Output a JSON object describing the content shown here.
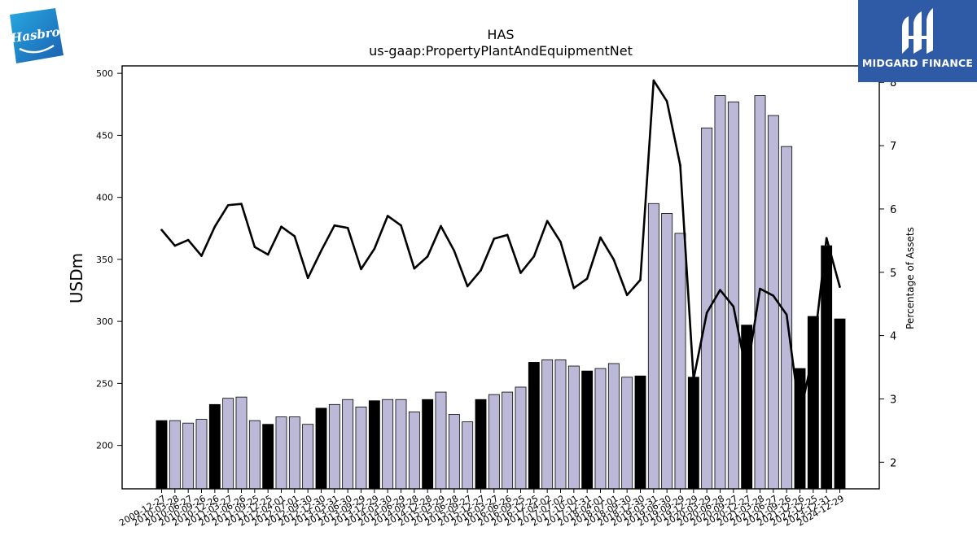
{
  "brand": {
    "left_logo": "Hasbro",
    "right_logo": "MIDGARD FINANCE"
  },
  "chart_data": {
    "type": "bar",
    "title": "HAS",
    "subtitle": "us-gaap:PropertyPlantAndEquipmentNet",
    "ylabel": "USDm",
    "y2label": "Percentage of Assets",
    "ylim": [
      165,
      506
    ],
    "y2lim": [
      1.58,
      8.26
    ],
    "yticks": [
      200,
      250,
      300,
      350,
      400,
      450,
      500
    ],
    "y2ticks": [
      2,
      3,
      4,
      5,
      6,
      7,
      8
    ],
    "categories": [
      "2009-12-27",
      "2010-03-28",
      "2010-06-27",
      "2010-09-26",
      "2010-12-26",
      "2011-03-27",
      "2011-06-26",
      "2011-09-25",
      "2011-12-25",
      "2012-04-01",
      "2012-07-01",
      "2012-09-30",
      "2012-12-30",
      "2013-03-31",
      "2013-06-30",
      "2013-09-29",
      "2013-12-29",
      "2014-03-30",
      "2014-06-29",
      "2014-09-28",
      "2014-12-28",
      "2015-03-29",
      "2015-06-28",
      "2015-09-27",
      "2015-12-27",
      "2016-03-27",
      "2016-06-26",
      "2016-09-25",
      "2016-12-25",
      "2017-04-02",
      "2017-07-02",
      "2017-10-01",
      "2017-12-31",
      "2018-04-01",
      "2018-07-01",
      "2018-09-30",
      "2018-12-30",
      "2019-03-31",
      "2019-06-30",
      "2019-09-29",
      "2019-12-29",
      "2020-03-29",
      "2020-06-28",
      "2020-09-27",
      "2020-12-27",
      "2021-03-28",
      "2021-06-27",
      "2021-09-26",
      "2021-12-26",
      "2022-12-25",
      "2023-12-31",
      "2024-12-29"
    ],
    "tick_labels": [
      "2009-12-27",
      "2010-03-28",
      "2010-06-27",
      "2010-09-26",
      "2010-12-26",
      "2011-03-27",
      "2011-06-26",
      "2011-09-25",
      "2011-12-25",
      "2012-04-01",
      "2012-07-01",
      "2012-09-30",
      "2012-12-30",
      "2013-03-31",
      "2013-06-30",
      "2013-09-29",
      "2013-12-29",
      "2014-03-30",
      "2014-06-29",
      "2014-09-28",
      "2014-12-28",
      "2015-03-29",
      "2015-06-28",
      "2015-09-27",
      "2015-12-27",
      "2016-03-27",
      "2016-06-26",
      "2016-09-25",
      "2016-12-25",
      "2017-04-02",
      "2017-07-02",
      "2017-10-01",
      "2017-12-31",
      "2018-04-01",
      "2018-07-01",
      "2018-09-30",
      "2018-12-30",
      "2019-03-31",
      "2019-06-30",
      "2019-09-29",
      "2019-12-29",
      "2020-03-29",
      "2020-06-28",
      "2020-09-27",
      "2020-12-27",
      "2021-03-28",
      "2021-06-27",
      "2021-09-26",
      "2021-12-26",
      "2022-12-25",
      "2023-12-31",
      "2024-12-29"
    ],
    "values": [
      220,
      220,
      218,
      221,
      233,
      238,
      239,
      220,
      217,
      223,
      223,
      217,
      230,
      233,
      237,
      231,
      236,
      237,
      237,
      227,
      237,
      243,
      225,
      219,
      237,
      241,
      243,
      247,
      267,
      269,
      269,
      264,
      260,
      262,
      266,
      255,
      256,
      395,
      387,
      371,
      255,
      456,
      482,
      477,
      297,
      482,
      466,
      441,
      262,
      304,
      361,
      302
    ],
    "annual": [
      true,
      false,
      false,
      false,
      true,
      false,
      false,
      false,
      true,
      false,
      false,
      false,
      true,
      false,
      false,
      false,
      true,
      false,
      false,
      false,
      true,
      false,
      false,
      false,
      true,
      false,
      false,
      false,
      true,
      false,
      false,
      false,
      true,
      false,
      false,
      false,
      true,
      false,
      false,
      false,
      true,
      false,
      false,
      false,
      true,
      false,
      false,
      false,
      true,
      true,
      true,
      true
    ],
    "pct_assets": [
      5.67,
      5.42,
      5.51,
      5.26,
      5.72,
      6.06,
      6.08,
      5.4,
      5.28,
      5.72,
      5.57,
      4.91,
      5.34,
      5.74,
      5.7,
      5.05,
      5.37,
      5.89,
      5.74,
      5.06,
      5.25,
      5.73,
      5.34,
      4.78,
      5.03,
      5.53,
      5.59,
      4.99,
      5.25,
      5.81,
      5.48,
      4.75,
      4.9,
      5.55,
      5.2,
      4.64,
      4.88,
      8.03,
      7.7,
      6.69,
      3.31,
      4.36,
      4.72,
      4.46,
      3.39,
      4.74,
      4.63,
      4.33,
      2.74,
      3.72,
      5.54,
      4.77
    ],
    "colors": {
      "annual_bar": "#000000",
      "quarter_bar": "#bcb9d8",
      "line": "#000000"
    },
    "grid": false
  }
}
